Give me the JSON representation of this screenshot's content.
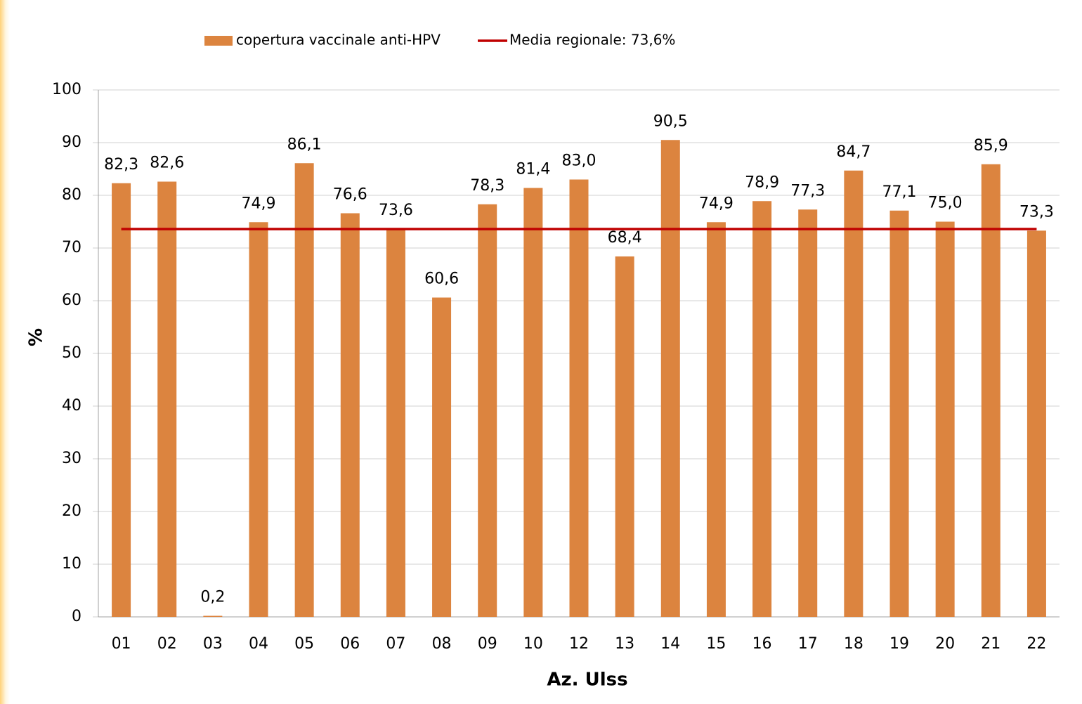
{
  "chart_data": {
    "type": "bar",
    "x_label": "Az. Ulss",
    "y_label": "%",
    "categories": [
      "01",
      "02",
      "03",
      "04",
      "05",
      "06",
      "07",
      "08",
      "09",
      "10",
      "12",
      "13",
      "14",
      "15",
      "16",
      "17",
      "18",
      "19",
      "20",
      "21",
      "22"
    ],
    "series": [
      {
        "name": "copertura vaccinale anti-HPV",
        "color": "#dc843f",
        "values": [
          82.3,
          82.6,
          0.2,
          74.9,
          86.1,
          76.6,
          73.6,
          60.6,
          78.3,
          81.4,
          83.0,
          68.4,
          90.5,
          74.9,
          78.9,
          77.3,
          84.7,
          77.1,
          75.0,
          85.9,
          73.3
        ],
        "value_labels": [
          "82,3",
          "82,6",
          "0,2",
          "74,9",
          "86,1",
          "76,6",
          "73,6",
          "60,6",
          "78,3",
          "81,4",
          "83,0",
          "68,4",
          "90,5",
          "74,9",
          "78,9",
          "77,3",
          "84,7",
          "77,1",
          "75,0",
          "85,9",
          "73,3"
        ]
      },
      {
        "name": "Media regionale: 73,6%",
        "type": "line",
        "color": "#c00000",
        "values": [
          73.6,
          73.6,
          73.6,
          73.6,
          73.6,
          73.6,
          73.6,
          73.6,
          73.6,
          73.6,
          73.6,
          73.6,
          73.6,
          73.6,
          73.6,
          73.6,
          73.6,
          73.6,
          73.6,
          73.6,
          73.6
        ]
      }
    ],
    "ylim": [
      0,
      100
    ],
    "yticks": [
      0,
      10,
      20,
      30,
      40,
      50,
      60,
      70,
      80,
      90,
      100
    ],
    "grid": true,
    "legend": "top"
  }
}
